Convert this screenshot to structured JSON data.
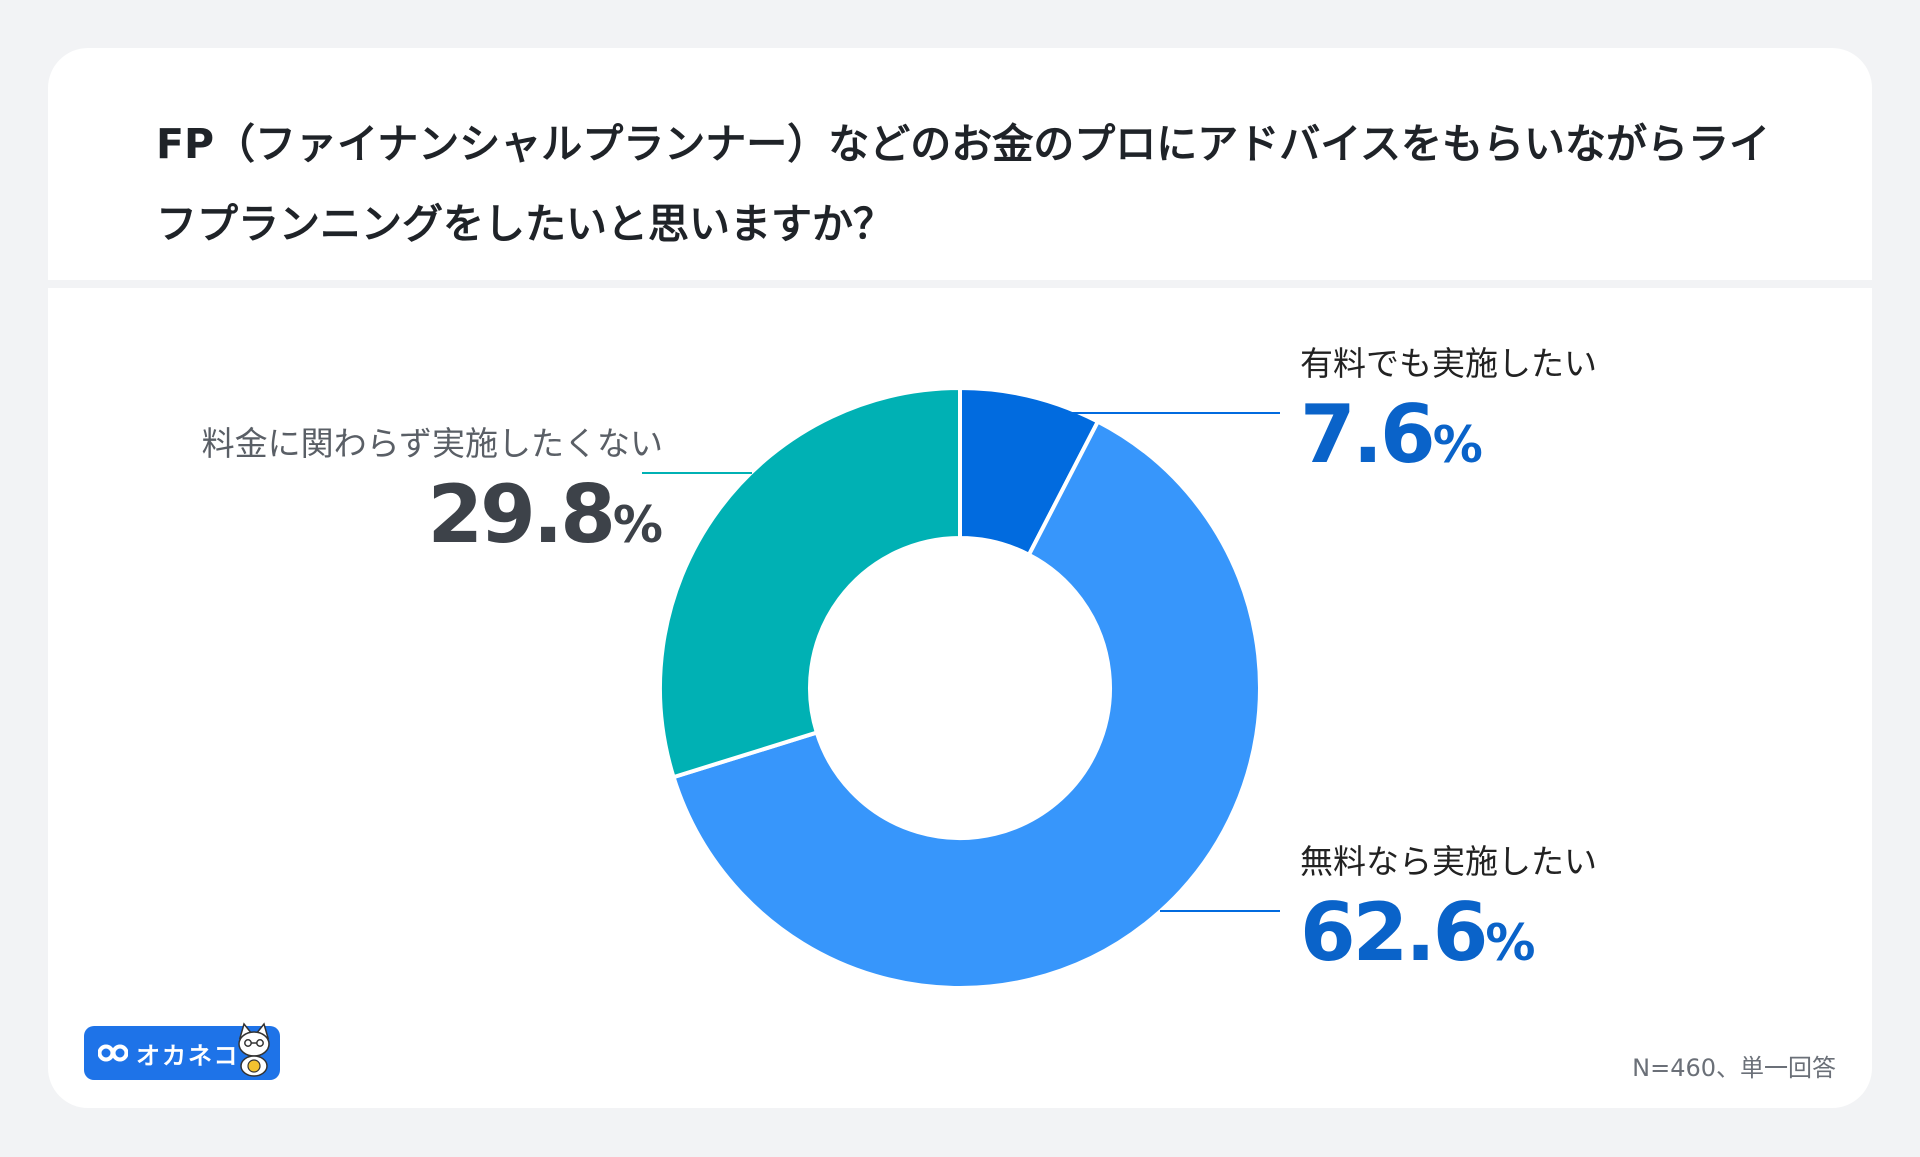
{
  "title": "FP（ファイナンシャルプランナー）などのお金のプロにアドバイスをもらいながらライフプランニングをしたいと思いますか？",
  "colors": {
    "paid": "#016bdf",
    "free": "#3796fb",
    "no": "#00b1b4",
    "value_blue": "#0a63c9",
    "value_gray": "#3d4249"
  },
  "chart_data": {
    "type": "pie",
    "style": "donut",
    "start": "top",
    "direction": "clockwise",
    "categories": [
      "有料でも実施したい",
      "無料なら実施したい",
      "料金に関わらず実施したくない"
    ],
    "values": [
      7.6,
      62.6,
      29.8
    ],
    "unit": "%",
    "labels": [
      {
        "name": "有料でも実施したい",
        "value": "7.6",
        "unit": "%"
      },
      {
        "name": "無料なら実施したい",
        "value": "62.6",
        "unit": "%"
      },
      {
        "name": "料金に関わらず実施したくない",
        "value": "29.8",
        "unit": "%"
      }
    ]
  },
  "logo": {
    "text": "オカネコ",
    "icon": "cat-mascot-icon"
  },
  "note": "N=460、単一回答"
}
